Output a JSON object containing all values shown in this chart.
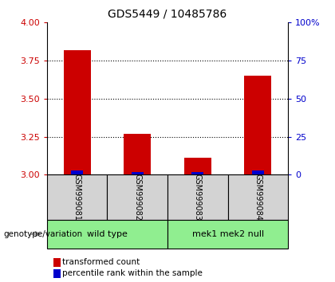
{
  "title": "GDS5449 / 10485786",
  "samples": [
    "GSM999081",
    "GSM999082",
    "GSM999083",
    "GSM999084"
  ],
  "red_values": [
    3.82,
    3.27,
    3.11,
    3.65
  ],
  "blue_values": [
    3.03,
    3.02,
    3.02,
    3.03
  ],
  "ymin": 3.0,
  "ymax": 4.0,
  "yticks": [
    3.0,
    3.25,
    3.5,
    3.75,
    4.0
  ],
  "right_yticks": [
    0,
    25,
    50,
    75,
    100
  ],
  "right_yticklabels": [
    "0",
    "25",
    "50",
    "75",
    "100%"
  ],
  "groups": [
    {
      "label": "wild type",
      "indices": [
        0,
        1
      ]
    },
    {
      "label": "mek1 mek2 null",
      "indices": [
        2,
        3
      ]
    }
  ],
  "group_color": "#90EE90",
  "sample_box_color": "#D3D3D3",
  "bar_width": 0.45,
  "red_color": "#CC0000",
  "blue_color": "#0000CC",
  "left_tick_color": "#CC0000",
  "right_tick_color": "#0000CC",
  "legend_red_label": "transformed count",
  "legend_blue_label": "percentile rank within the sample",
  "genotype_label": "genotype/variation",
  "title_fontsize": 10,
  "axis_fontsize": 8,
  "label_fontsize": 7.5
}
